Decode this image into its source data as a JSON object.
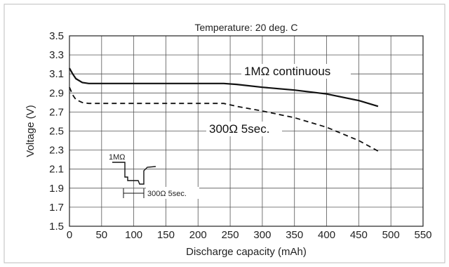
{
  "chart_data": {
    "type": "line",
    "title": "Temperature: 20 deg. C",
    "xlabel": "Discharge capacity (mAh)",
    "ylabel": "Voltage (V)",
    "xlim": [
      0,
      550
    ],
    "ylim": [
      1.5,
      3.5
    ],
    "xticks": [
      0,
      50,
      100,
      150,
      200,
      250,
      300,
      350,
      400,
      450,
      500,
      550
    ],
    "yticks": [
      1.5,
      1.7,
      1.9,
      2.1,
      2.3,
      2.5,
      2.7,
      2.9,
      3.1,
      3.3,
      3.5
    ],
    "grid": true,
    "series": [
      {
        "name": "1MΩ continuous",
        "style": "solid",
        "color": "#111111",
        "x": [
          0,
          5,
          10,
          20,
          30,
          50,
          100,
          150,
          200,
          240,
          260,
          300,
          350,
          400,
          450,
          480
        ],
        "y": [
          3.16,
          3.1,
          3.05,
          3.01,
          3.0,
          3.0,
          3.0,
          3.0,
          3.0,
          3.0,
          2.99,
          2.96,
          2.93,
          2.89,
          2.82,
          2.76
        ]
      },
      {
        "name": "300Ω 5sec.",
        "style": "dashed",
        "color": "#111111",
        "x": [
          0,
          5,
          10,
          20,
          30,
          50,
          100,
          150,
          200,
          240,
          260,
          300,
          350,
          400,
          450,
          480
        ],
        "y": [
          2.96,
          2.88,
          2.83,
          2.8,
          2.79,
          2.79,
          2.79,
          2.79,
          2.79,
          2.79,
          2.76,
          2.71,
          2.64,
          2.54,
          2.4,
          2.29
        ]
      }
    ],
    "inset": {
      "label_top": "1MΩ",
      "label_bottom": "300Ω 5sec."
    }
  }
}
